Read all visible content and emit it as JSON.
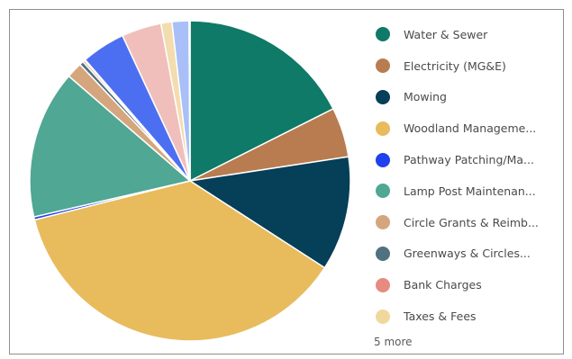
{
  "chart_data": {
    "type": "pie",
    "slices": [
      {
        "label": "Water & Sewer",
        "value": 17.5,
        "color": "#0e7a67"
      },
      {
        "label": "Electricity (MG&E)",
        "value": 5.0,
        "color": "#b97c50"
      },
      {
        "label": "Mowing",
        "value": 11.5,
        "color": "#053f58"
      },
      {
        "label": "Woodland Manageme...",
        "value": 36.8,
        "color": "#e8bb5d"
      },
      {
        "label": "Pathway Patching/Ma...",
        "value": 0.3,
        "color": "#1f41ee"
      },
      {
        "label": "Lamp Post Maintenan...",
        "value": 14.9,
        "color": "#4fa794"
      },
      {
        "label": "Circle Grants & Reimb...",
        "value": 1.6,
        "color": "#d5a67e"
      },
      {
        "label": "Greenways & Circles...",
        "value": 0.4,
        "color": "#4f7180"
      },
      {
        "label": "Bank Charges",
        "value": 0.2,
        "color": "#e68b80"
      },
      {
        "label": "Taxes & Fees",
        "value": 0.1,
        "color": "#f0d79c"
      },
      {
        "label": "",
        "value": 4.4,
        "color": "#4c6ff2"
      },
      {
        "label": "",
        "value": 4.0,
        "color": "#f0bfbc"
      },
      {
        "label": "",
        "value": 1.1,
        "color": "#f3dcae"
      },
      {
        "label": "",
        "value": 1.7,
        "color": "#a9bff7"
      },
      {
        "label": "",
        "value": 0.1,
        "color": "#d6dce8"
      }
    ],
    "legend_position": "right"
  },
  "legend": {
    "items": [
      {
        "label": "Water & Sewer",
        "color": "#0e7a67"
      },
      {
        "label": "Electricity (MG&E)",
        "color": "#b97c50"
      },
      {
        "label": "Mowing",
        "color": "#053f58"
      },
      {
        "label": "Woodland Manageme...",
        "color": "#e8bb5d"
      },
      {
        "label": "Pathway Patching/Ma...",
        "color": "#1f41ee"
      },
      {
        "label": "Lamp Post Maintenan...",
        "color": "#4fa794"
      },
      {
        "label": "Circle Grants & Reimb...",
        "color": "#d5a67e"
      },
      {
        "label": "Greenways & Circles...",
        "color": "#4f7180"
      },
      {
        "label": "Bank Charges",
        "color": "#e68b80"
      },
      {
        "label": "Taxes & Fees",
        "color": "#f0d79c"
      }
    ],
    "more_label": "5 more"
  }
}
